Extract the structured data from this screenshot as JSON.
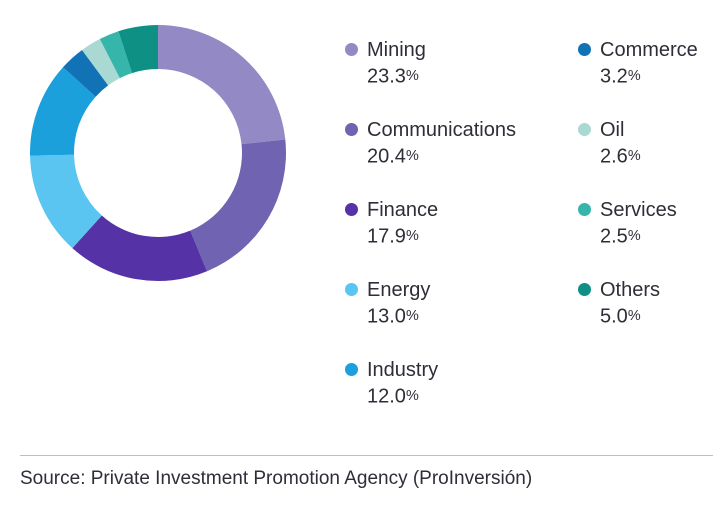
{
  "chart_data": {
    "type": "pie",
    "subtype": "donut",
    "title": "",
    "start_angle_deg": 0,
    "direction": "clockwise",
    "inner_radius_ratio": 0.65,
    "legend_position": "right",
    "segments": [
      {
        "label": "Mining",
        "value": 23.3,
        "pct_label": "23.3%",
        "color": "#9289c5"
      },
      {
        "label": "Communications",
        "value": 20.4,
        "pct_label": "20.4%",
        "color": "#6f63b2"
      },
      {
        "label": "Finance",
        "value": 17.9,
        "pct_label": "17.9%",
        "color": "#5532a5"
      },
      {
        "label": "Energy",
        "value": 13.0,
        "pct_label": "13.0%",
        "color": "#59c5f0"
      },
      {
        "label": "Industry",
        "value": 12.0,
        "pct_label": "12.0%",
        "color": "#1ba0dc"
      },
      {
        "label": "Commerce",
        "value": 3.2,
        "pct_label": "3.2%",
        "color": "#1172b5"
      },
      {
        "label": "Oil",
        "value": 2.6,
        "pct_label": "2.6%",
        "color": "#a9d9d2"
      },
      {
        "label": "Services",
        "value": 2.5,
        "pct_label": "2.5%",
        "color": "#36b5ab"
      },
      {
        "label": "Others",
        "value": 5.0,
        "pct_label": "5.0%",
        "color": "#0e9184"
      }
    ],
    "legend_columns": [
      [
        0,
        1,
        2,
        3,
        4
      ],
      [
        5,
        6,
        7,
        8
      ]
    ]
  },
  "source": {
    "text": "Source: Private Investment Promotion Agency (ProInversión)"
  },
  "colors": {
    "text": "#2e2e38",
    "divider": "#b9c0c9",
    "background": "#ffffff"
  }
}
